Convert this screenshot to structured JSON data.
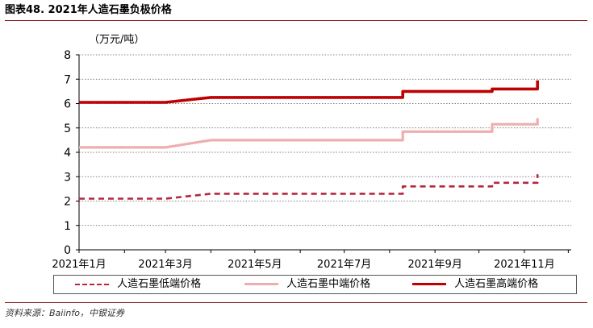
{
  "figure": {
    "title": "图表48. 2021年人造石墨负极价格",
    "source": "资料来源：Baiinfo，中银证券"
  },
  "colors": {
    "low": "#b5263e",
    "mid": "#eeaeb0",
    "high": "#c00000",
    "grid": "#555555",
    "rule": "#8b1a1a"
  },
  "chart_data": {
    "type": "line",
    "unit_label": "（万元/吨）",
    "ylim": [
      0,
      8
    ],
    "yticks": [
      "0",
      "1",
      "2",
      "3",
      "4",
      "5",
      "6",
      "7",
      "8"
    ],
    "x_ticks": [
      "2021年1月",
      "2021年3月",
      "2021年5月",
      "2021年7月",
      "2021年9月",
      "2021年11月"
    ],
    "grid": "horizontal dotted",
    "legend_position": "bottom",
    "series": [
      {
        "name": "人造石墨低端价格",
        "style": "dashed",
        "points": [
          [
            "2021-01-01",
            2.1
          ],
          [
            "2021-03-01",
            2.1
          ],
          [
            "2021-04-01",
            2.3
          ],
          [
            "2021-05-01",
            2.3
          ],
          [
            "2021-06-01",
            2.3
          ],
          [
            "2021-07-01",
            2.3
          ],
          [
            "2021-08-10",
            2.3
          ],
          [
            "2021-08-10",
            2.6
          ],
          [
            "2021-10-10",
            2.6
          ],
          [
            "2021-10-10",
            2.75
          ],
          [
            "2021-11-10",
            2.75
          ],
          [
            "2021-11-10",
            3.1
          ]
        ]
      },
      {
        "name": "人造石墨中端价格",
        "style": "solid",
        "points": [
          [
            "2021-01-01",
            4.2
          ],
          [
            "2021-03-01",
            4.2
          ],
          [
            "2021-04-01",
            4.5
          ],
          [
            "2021-05-01",
            4.5
          ],
          [
            "2021-06-01",
            4.5
          ],
          [
            "2021-07-01",
            4.5
          ],
          [
            "2021-08-10",
            4.5
          ],
          [
            "2021-08-10",
            4.85
          ],
          [
            "2021-10-10",
            4.85
          ],
          [
            "2021-10-10",
            5.15
          ],
          [
            "2021-11-10",
            5.15
          ],
          [
            "2021-11-10",
            5.4
          ]
        ]
      },
      {
        "name": "人造石墨高端价格",
        "style": "solid",
        "points": [
          [
            "2021-01-01",
            6.05
          ],
          [
            "2021-03-01",
            6.05
          ],
          [
            "2021-04-01",
            6.25
          ],
          [
            "2021-05-01",
            6.25
          ],
          [
            "2021-06-01",
            6.25
          ],
          [
            "2021-07-01",
            6.25
          ],
          [
            "2021-08-10",
            6.25
          ],
          [
            "2021-08-10",
            6.5
          ],
          [
            "2021-10-10",
            6.5
          ],
          [
            "2021-10-10",
            6.6
          ],
          [
            "2021-11-10",
            6.6
          ],
          [
            "2021-11-10",
            6.95
          ]
        ]
      }
    ]
  }
}
